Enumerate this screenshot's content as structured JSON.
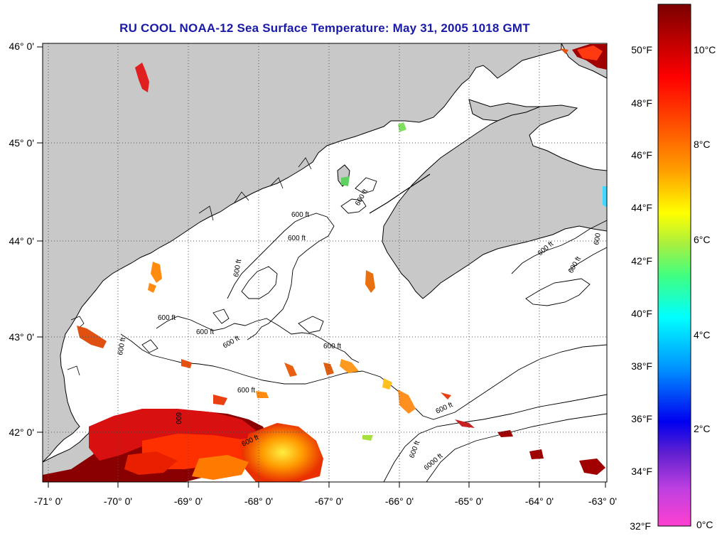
{
  "title": "RU COOL  NOAA-12  Sea Surface Temperature:  May 31, 2005 1018 GMT",
  "map": {
    "lat_labels": [
      "46° 0'",
      "45° 0'",
      "44° 0'",
      "43° 0'",
      "42° 0'"
    ],
    "lon_labels": [
      "-71° 0'",
      "-70° 0'",
      "-69° 0'",
      "-68° 0'",
      "-67° 0'",
      "-66° 0'",
      "-65° 0'",
      "-64° 0'",
      "-63° 0'"
    ],
    "contour_labels": [
      "600 ft",
      "600 ft",
      "600 ft",
      "600 ft",
      "600 ft",
      "600 ft",
      "600 ft",
      "600 ft",
      "600 ft",
      "600 ft",
      "600 ft",
      "600",
      "600 ft",
      "600 ft",
      "6000 ft",
      "600 ft",
      "600 ft",
      "600"
    ],
    "colors": {
      "land": "#c8c8c8",
      "ocean": "#ffffff",
      "grid": "#555555",
      "title": "#1a1aa8"
    }
  },
  "colorbar": {
    "fahrenheit_labels": [
      "50°F",
      "48°F",
      "46°F",
      "44°F",
      "42°F",
      "40°F",
      "38°F",
      "36°F",
      "34°F",
      "32°F"
    ],
    "celsius_labels": [
      "10°C",
      "8°C",
      "6°C",
      "4°C",
      "2°C",
      "0°C"
    ]
  }
}
